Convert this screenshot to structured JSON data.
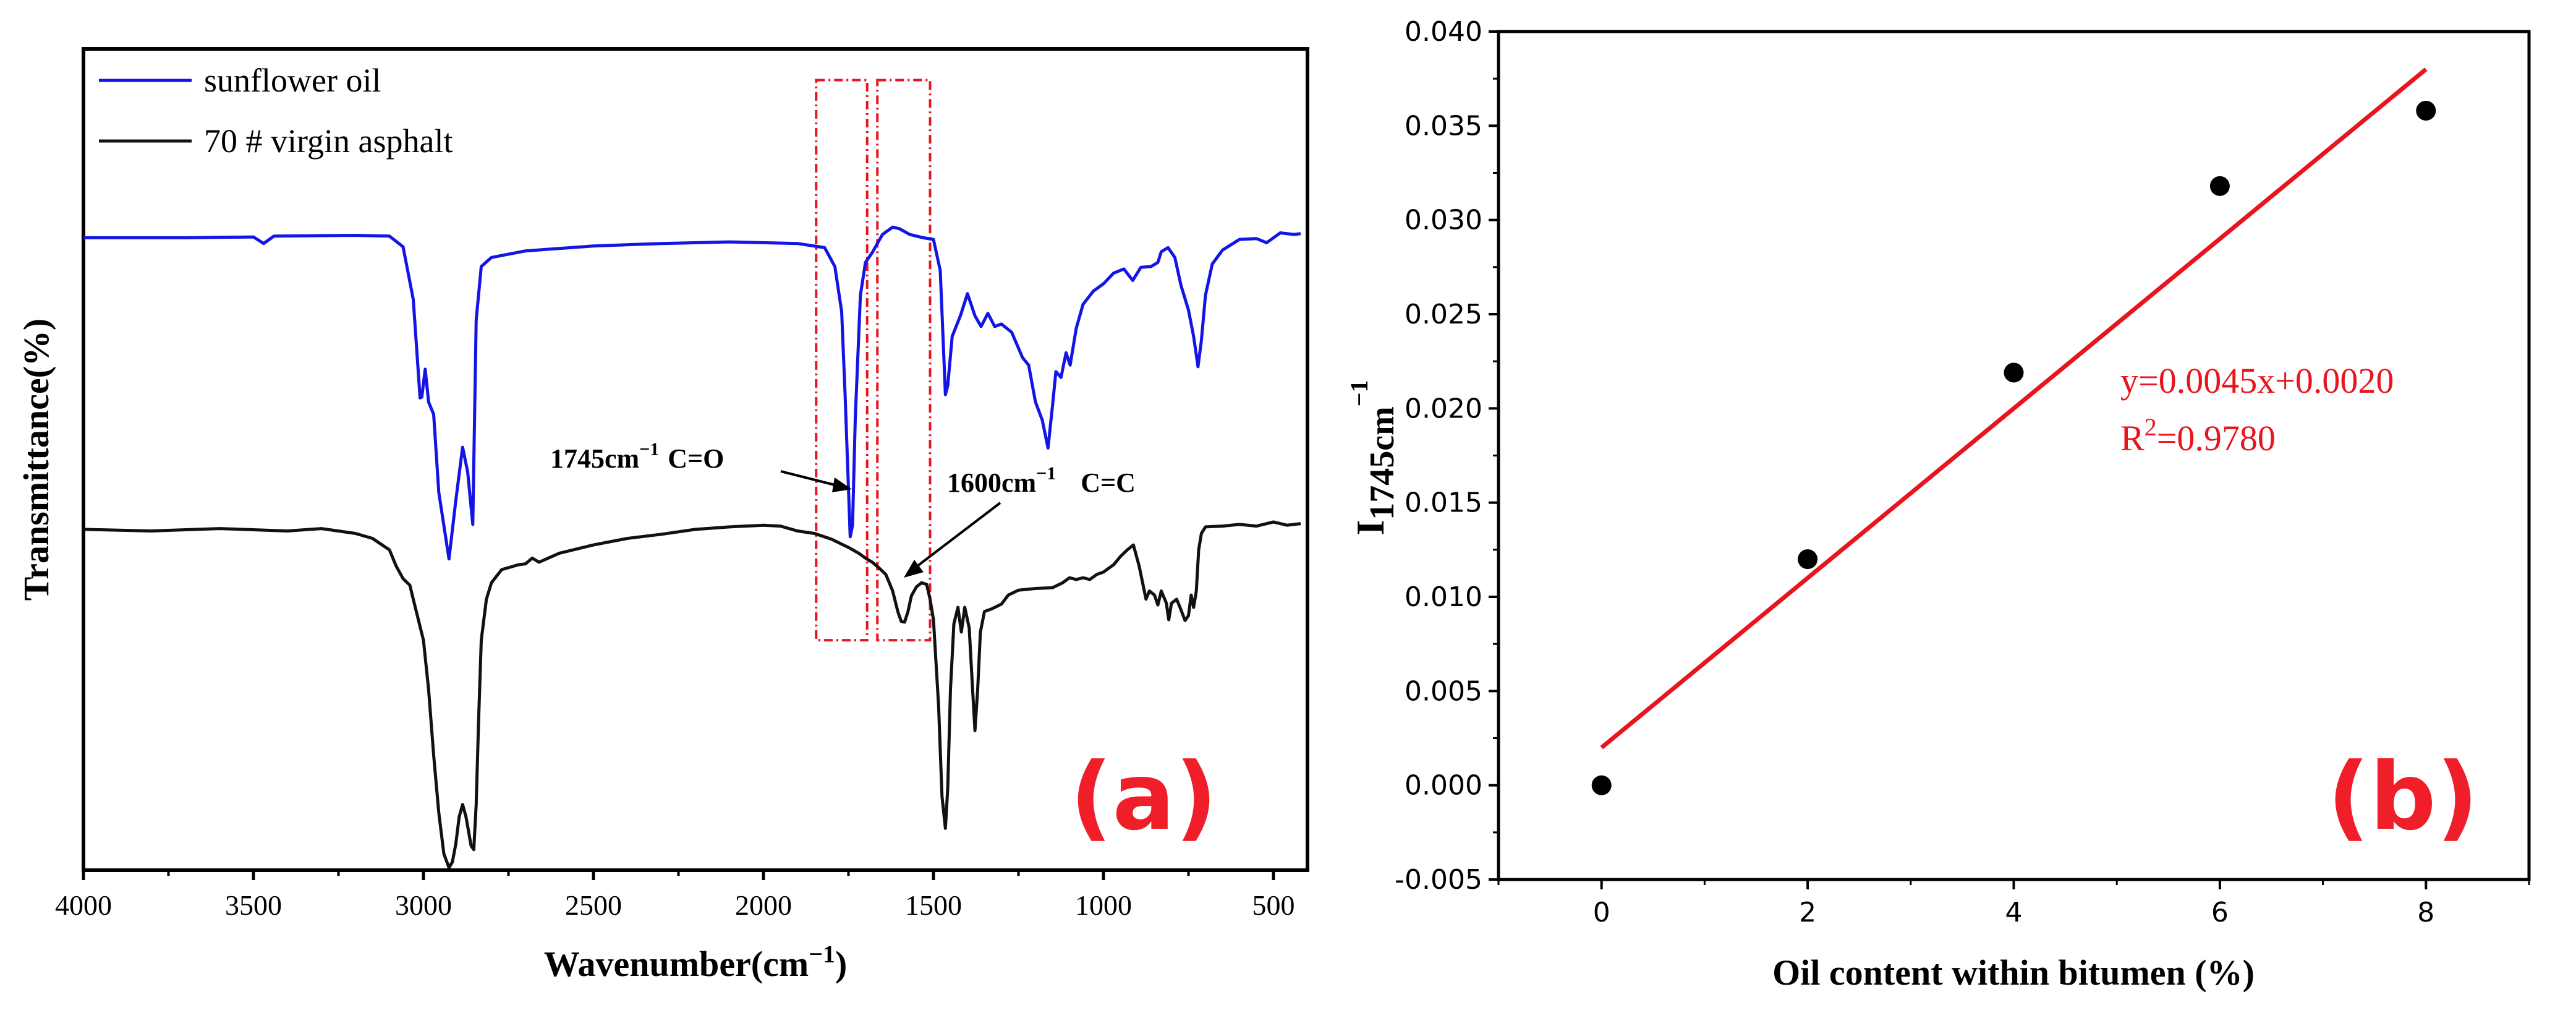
{
  "chart_data": [
    {
      "panel": "a",
      "type": "line",
      "panel_label": "(a)",
      "xlabel": "Wavenumber(cm",
      "xlabel_sup": "−1",
      "xlabel_end": ")",
      "ylabel": "Transmittance(%)",
      "xlim": [
        4000,
        400
      ],
      "ylim": [
        0,
        100
      ],
      "x_ticks": [
        4000,
        3500,
        3000,
        2500,
        2000,
        1500,
        1000,
        500
      ],
      "legend": [
        "sunflower oil",
        "70 # virgin asphalt"
      ],
      "series": [
        {
          "name": "sunflower oil",
          "color": "#1414e6",
          "points": [
            [
              4000,
              77.0
            ],
            [
              3700,
              77.0
            ],
            [
              3500,
              77.1
            ],
            [
              3470,
              76.3
            ],
            [
              3440,
              77.2
            ],
            [
              3200,
              77.3
            ],
            [
              3100,
              77.2
            ],
            [
              3060,
              75.9
            ],
            [
              3030,
              69.5
            ],
            [
              3010,
              57.5
            ],
            [
              3005,
              57.6
            ],
            [
              2995,
              61.0
            ],
            [
              2985,
              57.0
            ],
            [
              2970,
              55.5
            ],
            [
              2955,
              46.0
            ],
            [
              2925,
              37.9
            ],
            [
              2905,
              45.0
            ],
            [
              2885,
              51.5
            ],
            [
              2870,
              48.5
            ],
            [
              2855,
              42.1
            ],
            [
              2845,
              67.0
            ],
            [
              2830,
              73.5
            ],
            [
              2800,
              74.6
            ],
            [
              2700,
              75.4
            ],
            [
              2500,
              76.0
            ],
            [
              2300,
              76.3
            ],
            [
              2100,
              76.5
            ],
            [
              1900,
              76.3
            ],
            [
              1820,
              75.8
            ],
            [
              1790,
              73.5
            ],
            [
              1770,
              68.0
            ],
            [
              1760,
              58.0
            ],
            [
              1745,
              40.6
            ],
            [
              1738,
              42.0
            ],
            [
              1730,
              55.0
            ],
            [
              1715,
              70.0
            ],
            [
              1700,
              74.0
            ],
            [
              1680,
              75.2
            ],
            [
              1650,
              77.4
            ],
            [
              1620,
              78.3
            ],
            [
              1600,
              78.1
            ],
            [
              1570,
              77.4
            ],
            [
              1530,
              77.0
            ],
            [
              1500,
              76.8
            ],
            [
              1480,
              73.0
            ],
            [
              1465,
              57.9
            ],
            [
              1458,
              59.0
            ],
            [
              1445,
              65.0
            ],
            [
              1420,
              67.6
            ],
            [
              1400,
              70.2
            ],
            [
              1378,
              67.5
            ],
            [
              1360,
              66.2
            ],
            [
              1340,
              67.8
            ],
            [
              1320,
              66.2
            ],
            [
              1300,
              66.5
            ],
            [
              1270,
              65.5
            ],
            [
              1238,
              62.4
            ],
            [
              1220,
              61.5
            ],
            [
              1200,
              57.0
            ],
            [
              1180,
              54.8
            ],
            [
              1163,
              51.4
            ],
            [
              1150,
              56.5
            ],
            [
              1140,
              60.7
            ],
            [
              1125,
              60.0
            ],
            [
              1110,
              63.0
            ],
            [
              1098,
              61.5
            ],
            [
              1080,
              66.0
            ],
            [
              1060,
              68.9
            ],
            [
              1030,
              70.5
            ],
            [
              1000,
              71.4
            ],
            [
              970,
              72.7
            ],
            [
              940,
              73.2
            ],
            [
              914,
              71.8
            ],
            [
              890,
              73.4
            ],
            [
              860,
              73.5
            ],
            [
              840,
              74.0
            ],
            [
              830,
              75.3
            ],
            [
              810,
              75.8
            ],
            [
              790,
              74.6
            ],
            [
              772,
              71.2
            ],
            [
              750,
              68.2
            ],
            [
              735,
              65.0
            ],
            [
              722,
              61.3
            ],
            [
              712,
              64.5
            ],
            [
              700,
              70.0
            ],
            [
              680,
              73.8
            ],
            [
              650,
              75.5
            ],
            [
              600,
              76.8
            ],
            [
              550,
              76.9
            ],
            [
              520,
              76.4
            ],
            [
              480,
              77.6
            ],
            [
              440,
              77.4
            ],
            [
              420,
              77.5
            ]
          ]
        },
        {
          "name": "70 # virgin asphalt",
          "color": "#111111",
          "points": [
            [
              4000,
              41.5
            ],
            [
              3800,
              41.3
            ],
            [
              3600,
              41.6
            ],
            [
              3400,
              41.3
            ],
            [
              3300,
              41.6
            ],
            [
              3200,
              41.0
            ],
            [
              3150,
              40.4
            ],
            [
              3100,
              39.0
            ],
            [
              3080,
              37.0
            ],
            [
              3060,
              35.5
            ],
            [
              3040,
              34.7
            ],
            [
              3030,
              33.0
            ],
            [
              3000,
              28.0
            ],
            [
              2985,
              22.0
            ],
            [
              2970,
              14.0
            ],
            [
              2955,
              7.0
            ],
            [
              2940,
              2.0
            ],
            [
              2925,
              0.3
            ],
            [
              2915,
              1.0
            ],
            [
              2905,
              3.2
            ],
            [
              2895,
              6.5
            ],
            [
              2885,
              8.0
            ],
            [
              2875,
              6.5
            ],
            [
              2860,
              3.0
            ],
            [
              2852,
              2.5
            ],
            [
              2845,
              8.0
            ],
            [
              2838,
              18.0
            ],
            [
              2830,
              28.0
            ],
            [
              2815,
              33.0
            ],
            [
              2800,
              35.0
            ],
            [
              2770,
              36.6
            ],
            [
              2720,
              37.2
            ],
            [
              2700,
              37.3
            ],
            [
              2680,
              38.0
            ],
            [
              2660,
              37.5
            ],
            [
              2600,
              38.6
            ],
            [
              2500,
              39.6
            ],
            [
              2400,
              40.4
            ],
            [
              2300,
              40.9
            ],
            [
              2200,
              41.5
            ],
            [
              2100,
              41.8
            ],
            [
              2000,
              42.0
            ],
            [
              1950,
              41.9
            ],
            [
              1900,
              41.3
            ],
            [
              1850,
              41.0
            ],
            [
              1800,
              40.3
            ],
            [
              1750,
              39.3
            ],
            [
              1720,
              38.6
            ],
            [
              1700,
              38.0
            ],
            [
              1680,
              37.5
            ],
            [
              1660,
              36.8
            ],
            [
              1640,
              36.0
            ],
            [
              1620,
              34.0
            ],
            [
              1605,
              31.5
            ],
            [
              1595,
              30.3
            ],
            [
              1585,
              30.2
            ],
            [
              1575,
              31.5
            ],
            [
              1565,
              33.4
            ],
            [
              1550,
              34.5
            ],
            [
              1535,
              35.0
            ],
            [
              1520,
              34.8
            ],
            [
              1510,
              33.0
            ],
            [
              1500,
              30.5
            ],
            [
              1485,
              20.0
            ],
            [
              1475,
              9.0
            ],
            [
              1465,
              5.1
            ],
            [
              1458,
              10.0
            ],
            [
              1450,
              22.0
            ],
            [
              1440,
              30.0
            ],
            [
              1428,
              32.0
            ],
            [
              1418,
              29.0
            ],
            [
              1408,
              32.0
            ],
            [
              1395,
              29.5
            ],
            [
              1385,
              22.0
            ],
            [
              1378,
              17.0
            ],
            [
              1370,
              22.0
            ],
            [
              1362,
              29.0
            ],
            [
              1350,
              31.5
            ],
            [
              1330,
              31.8
            ],
            [
              1300,
              32.4
            ],
            [
              1280,
              33.5
            ],
            [
              1250,
              34.1
            ],
            [
              1200,
              34.3
            ],
            [
              1150,
              34.4
            ],
            [
              1120,
              35.0
            ],
            [
              1100,
              35.6
            ],
            [
              1080,
              35.4
            ],
            [
              1060,
              35.6
            ],
            [
              1040,
              35.4
            ],
            [
              1020,
              36.0
            ],
            [
              1000,
              36.3
            ],
            [
              970,
              37.2
            ],
            [
              950,
              38.2
            ],
            [
              930,
              39.0
            ],
            [
              912,
              39.6
            ],
            [
              895,
              37.0
            ],
            [
              875,
              33.0
            ],
            [
              865,
              34.0
            ],
            [
              850,
              33.5
            ],
            [
              840,
              32.3
            ],
            [
              830,
              34.0
            ],
            [
              815,
              32.5
            ],
            [
              808,
              30.5
            ],
            [
              800,
              32.5
            ],
            [
              785,
              33.0
            ],
            [
              775,
              32.0
            ],
            [
              760,
              30.4
            ],
            [
              750,
              31.0
            ],
            [
              742,
              33.5
            ],
            [
              735,
              32.0
            ],
            [
              727,
              34.0
            ],
            [
              720,
              39.0
            ],
            [
              712,
              41.0
            ],
            [
              700,
              41.8
            ],
            [
              650,
              41.9
            ],
            [
              600,
              42.1
            ],
            [
              550,
              41.9
            ],
            [
              500,
              42.4
            ],
            [
              460,
              42.0
            ],
            [
              420,
              42.2
            ]
          ]
        }
      ],
      "annotations": [
        {
          "label": "1745cm",
          "sup": "−1",
          "tail": "C=O",
          "target_x": 1745,
          "target_y": 40.6
        },
        {
          "label": "1600cm",
          "sup": "−1",
          "tail": "C=C",
          "target_x": 1590,
          "target_y": 29.0
        }
      ],
      "highlight_boxes": [
        {
          "x_from": 1845,
          "x_to": 1695,
          "y_from": 28.0,
          "y_to": 96.2
        },
        {
          "x_from": 1665,
          "x_to": 1510,
          "y_from": 28.0,
          "y_to": 96.2
        }
      ]
    },
    {
      "panel": "b",
      "type": "scatter",
      "panel_label": "(b)",
      "xlabel": "Oil content within bitumen (%)",
      "ylabel": "I",
      "ylabel_sub": "1745cm",
      "ylabel_sup": "−1",
      "xlim": [
        -1,
        9
      ],
      "ylim": [
        -0.005,
        0.04
      ],
      "x_ticks": [
        "0",
        "2",
        "4",
        "6",
        "8"
      ],
      "y_ticks": [
        "-0.005",
        "0.000",
        "0.005",
        "0.010",
        "0.015",
        "0.020",
        "0.025",
        "0.030",
        "0.035",
        "0.040"
      ],
      "x": [
        0,
        2,
        4,
        6,
        8
      ],
      "y": [
        0.0,
        0.012,
        0.0219,
        0.0318,
        0.0358
      ],
      "marker_color": "#000000",
      "fit": {
        "slope": 0.0045,
        "intercept": 0.002,
        "x_range": [
          0,
          8
        ],
        "color": "#e8141e"
      },
      "equation": "y=0.0045x+0.0020",
      "r2_prefix": "R",
      "r2_sup": "2",
      "r2_value": "=0.9780"
    }
  ]
}
